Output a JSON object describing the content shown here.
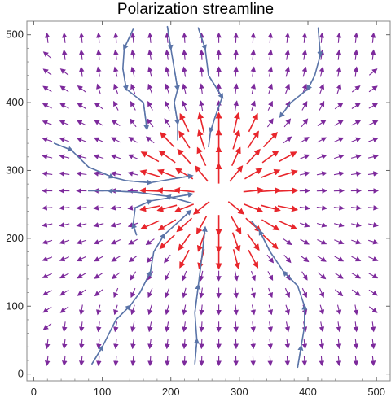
{
  "chart_data": {
    "type": "vector-field",
    "title": "Polarization streamline",
    "xlim": [
      -10,
      520
    ],
    "ylim": [
      -10,
      520
    ],
    "x_ticks": [
      0,
      100,
      200,
      300,
      400,
      500
    ],
    "y_ticks": [
      0,
      100,
      200,
      300,
      400,
      500
    ],
    "x_tick_labels": [
      "0",
      "100",
      "200",
      "300",
      "400",
      "500"
    ],
    "y_tick_labels": [
      "0",
      "100",
      "200",
      "300",
      "400",
      "500"
    ],
    "field_grid": {
      "start": 20,
      "step": 25,
      "count": 20
    },
    "field_center": [
      270,
      265
    ],
    "highlight_radius": 120,
    "colors": {
      "field_arrow": "#7d2a9c",
      "highlight_arrow": "#e8262c",
      "streamline": "#5a74a8",
      "frame": "#888888"
    },
    "streamlines": [
      [
        [
          145,
          508
        ],
        [
          132,
          480
        ],
        [
          130,
          450
        ],
        [
          135,
          420
        ],
        [
          160,
          400
        ],
        [
          165,
          362
        ]
      ],
      [
        [
          240,
          510
        ],
        [
          250,
          480
        ],
        [
          255,
          440
        ],
        [
          275,
          408
        ],
        [
          265,
          380
        ],
        [
          258,
          358
        ],
        [
          255,
          335
        ]
      ],
      [
        [
          195,
          512
        ],
        [
          200,
          480
        ],
        [
          205,
          450
        ],
        [
          210,
          420
        ],
        [
          205,
          400
        ],
        [
          210,
          370
        ],
        [
          210,
          345
        ]
      ],
      [
        [
          415,
          510
        ],
        [
          418,
          470
        ],
        [
          410,
          440
        ],
        [
          400,
          420
        ],
        [
          375,
          400
        ],
        [
          360,
          380
        ]
      ],
      [
        [
          30,
          340
        ],
        [
          55,
          330
        ],
        [
          80,
          305
        ],
        [
          115,
          290
        ],
        [
          135,
          285
        ],
        [
          170,
          282
        ],
        [
          205,
          288
        ],
        [
          230,
          292
        ]
      ],
      [
        [
          85,
          15
        ],
        [
          100,
          40
        ],
        [
          120,
          80
        ],
        [
          140,
          100
        ],
        [
          155,
          120
        ],
        [
          170,
          150
        ],
        [
          175,
          180
        ],
        [
          190,
          205
        ],
        [
          212,
          225
        ],
        [
          228,
          240
        ]
      ],
      [
        [
          235,
          15
        ],
        [
          238,
          50
        ],
        [
          235,
          90
        ],
        [
          240,
          130
        ],
        [
          245,
          170
        ],
        [
          250,
          215
        ]
      ],
      [
        [
          385,
          10
        ],
        [
          390,
          40
        ],
        [
          395,
          70
        ],
        [
          395,
          100
        ],
        [
          385,
          130
        ],
        [
          365,
          150
        ],
        [
          345,
          180
        ],
        [
          330,
          210
        ],
        [
          318,
          225
        ]
      ],
      [
        [
          230,
          252
        ],
        [
          195,
          262
        ],
        [
          150,
          268
        ],
        [
          110,
          270
        ],
        [
          80,
          270
        ]
      ],
      [
        [
          150,
          205
        ],
        [
          145,
          220
        ],
        [
          148,
          245
        ],
        [
          170,
          255
        ],
        [
          200,
          260
        ],
        [
          230,
          265
        ]
      ]
    ]
  }
}
